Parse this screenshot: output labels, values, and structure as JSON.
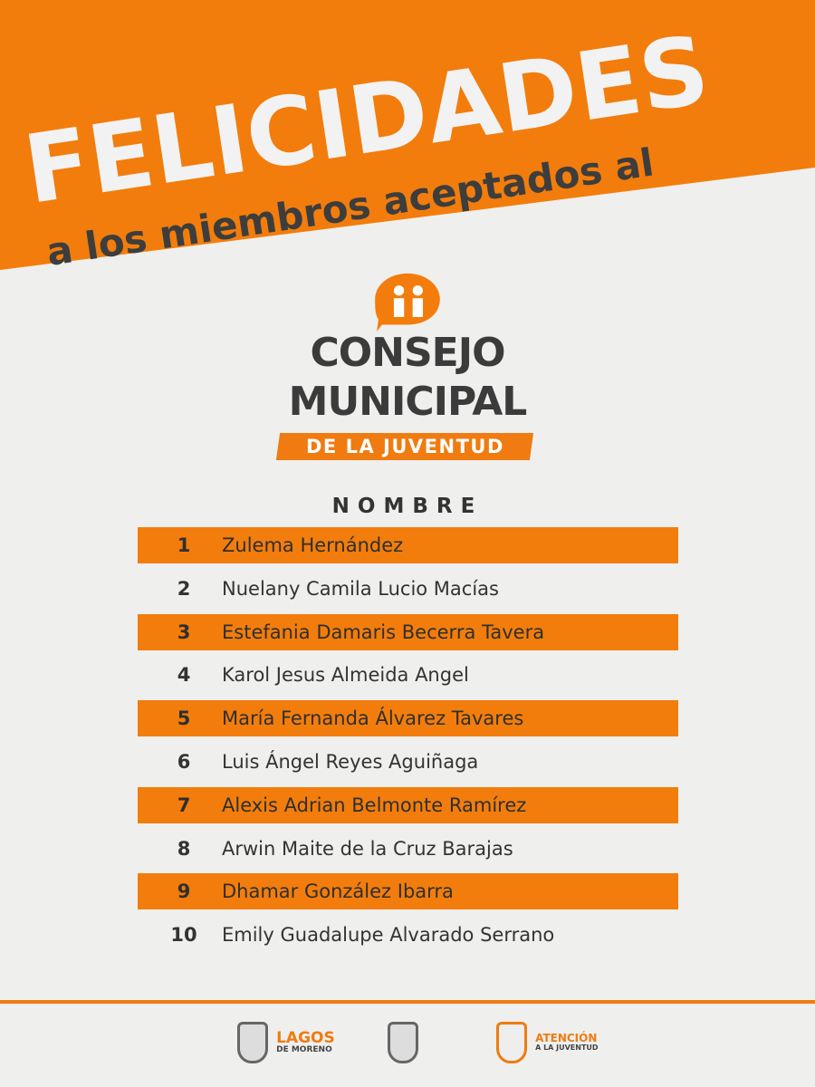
{
  "header": {
    "title": "FELICIDADES",
    "subtitle": "a los miembros aceptados al"
  },
  "logo": {
    "line1": "CONSEJO",
    "line2": "MUNICIPAL",
    "line3": "DE LA JUVENTUD"
  },
  "table": {
    "column_header": "NOMBRE",
    "rows": [
      {
        "num": "1",
        "name": "Zulema Hernández"
      },
      {
        "num": "2",
        "name": "Nuelany Camila Lucio Macías"
      },
      {
        "num": "3",
        "name": "Estefania Damaris Becerra Tavera"
      },
      {
        "num": "4",
        "name": "Karol Jesus Almeida Angel"
      },
      {
        "num": "5",
        "name": "María Fernanda Álvarez Tavares"
      },
      {
        "num": "6",
        "name": "Luis Ángel Reyes Aguiñaga"
      },
      {
        "num": "7",
        "name": "Alexis Adrian Belmonte Ramírez"
      },
      {
        "num": "8",
        "name": "Arwin Maite de la Cruz Barajas"
      },
      {
        "num": "9",
        "name": "Dhamar González Ibarra"
      },
      {
        "num": "10",
        "name": "Emily Guadalupe Alvarado Serrano"
      }
    ]
  },
  "footer": {
    "logo1_line1": "LAGOS",
    "logo1_line2": "DE MORENO",
    "logo3_line1": "ATENCIÓN",
    "logo3_line2": "A LA JUVENTUD"
  },
  "colors": {
    "accent": "#f27d0c",
    "text": "#333333",
    "background": "#efefee"
  }
}
